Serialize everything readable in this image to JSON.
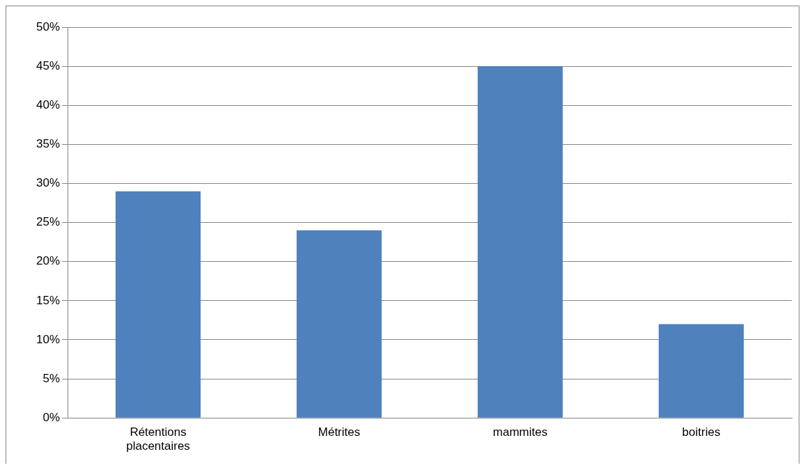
{
  "chart_data": {
    "type": "bar",
    "categories": [
      "Rétentions placentaires",
      "Métrites",
      "mammites",
      "boitries"
    ],
    "values": [
      29,
      24,
      45,
      12
    ],
    "color": "#4f81bd",
    "ylim": [
      0,
      50
    ],
    "yticks": [
      {
        "value": 0,
        "label": "0%"
      },
      {
        "value": 5,
        "label": "5%"
      },
      {
        "value": 10,
        "label": "10%"
      },
      {
        "value": 15,
        "label": "15%"
      },
      {
        "value": 20,
        "label": "20%"
      },
      {
        "value": 25,
        "label": "25%"
      },
      {
        "value": 30,
        "label": "30%"
      },
      {
        "value": 35,
        "label": "35%"
      },
      {
        "value": 40,
        "label": "40%"
      },
      {
        "value": 45,
        "label": "45%"
      },
      {
        "value": 50,
        "label": "50%"
      }
    ],
    "grid": "y",
    "legend": false
  }
}
